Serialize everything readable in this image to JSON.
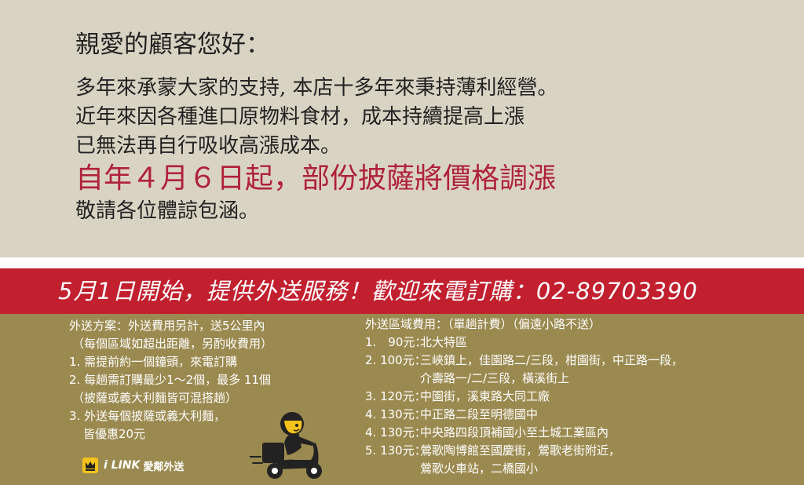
{
  "notice": {
    "greeting": "親愛的顧客您好：",
    "lines": [
      "多年來承蒙大家的支持, 本店十多年來秉持薄利經營。",
      "近年來因各種進口原物料食材，成本持續提高上漲",
      "已無法再自行吸收高漲成本。"
    ],
    "highlight": "自年４月６日起，部份披薩將價格調漲",
    "closing": "敬請各位體諒包涵。"
  },
  "banner": {
    "text": "5月1日開始，提供外送服務！歡迎來電訂購：02-89703390"
  },
  "delivery_plan": {
    "lines": [
      "外送方案：外送費用另計，送5公里內",
      "（每個區域如超出距離，另酌收費用）",
      "1. 需提前約一個鐘頭，來電訂購",
      "2. 每趟需訂購最少1～2個，最多 11個",
      "（披薩或義大利麵皆可混搭趟）",
      "3. 外送每個披薩或義大利麵，",
      "皆優惠20元"
    ]
  },
  "delivery_fees": {
    "title": "外送區域費用：（單趟計費）（偏遠小路不送）",
    "rows": [
      {
        "num": "1.　90元：",
        "lines": [
          "北大特區"
        ]
      },
      {
        "num": "2. 100元：",
        "lines": [
          "三峽鎮上，佳園路二/三段，柑園街，中正路一段，",
          "介壽路一/二/三段，橫溪街上"
        ]
      },
      {
        "num": "3. 120元：",
        "lines": [
          "中園街，溪東路大同工廠"
        ]
      },
      {
        "num": "4. 130元：",
        "lines": [
          "中正路二段至明德國中"
        ]
      },
      {
        "num": "4. 130元：",
        "lines": [
          "中央路四段頂補國小至土城工業區內"
        ]
      },
      {
        "num": "5. 130元：",
        "lines": [
          "鶯歌陶博館至國慶街，鶯歌老街附近，",
          "鶯歌火車站，二橋國小"
        ]
      }
    ]
  },
  "logo": {
    "brand": "i LINK",
    "name": "愛鄰外送"
  },
  "colors": {
    "background": "#d9d3c4",
    "banner": "#c2202f",
    "bottom": "#9b8a50",
    "highlight": "#b0213a"
  }
}
